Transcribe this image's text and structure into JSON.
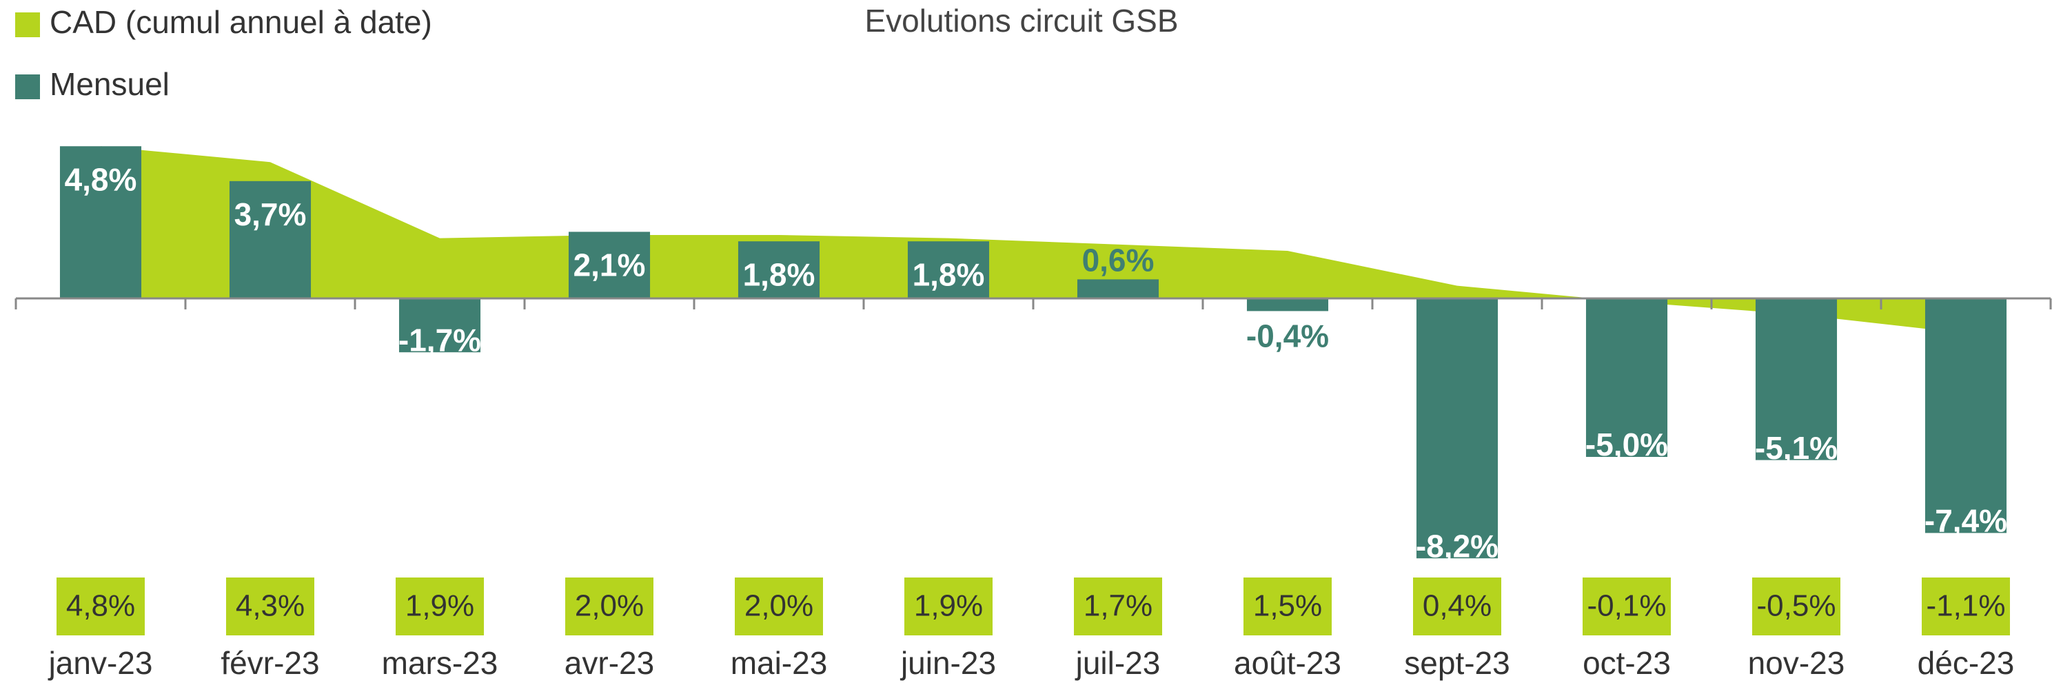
{
  "chart_data": {
    "type": "bar",
    "title": "Evolutions circuit GSB",
    "categories": [
      "janv-23",
      "févr-23",
      "mars-23",
      "avr-23",
      "mai-23",
      "juin-23",
      "juil-23",
      "août-23",
      "sept-23",
      "oct-23",
      "nov-23",
      "déc-23"
    ],
    "series": [
      {
        "name": "CAD  (cumul annuel à date)",
        "type": "area",
        "color": "#b5d41e",
        "values": [
          4.8,
          4.3,
          1.9,
          2.0,
          2.0,
          1.9,
          1.7,
          1.5,
          0.4,
          -0.1,
          -0.5,
          -1.1
        ],
        "value_labels": [
          "4,8%",
          "4,3%",
          "1,9%",
          "2,0%",
          "2,0%",
          "1,9%",
          "1,7%",
          "1,5%",
          "0,4%",
          "-0,1%",
          "-0,5%",
          "-1,1%"
        ]
      },
      {
        "name": "Mensuel",
        "type": "bar",
        "color": "#3f7f72",
        "values": [
          4.8,
          3.7,
          -1.7,
          2.1,
          1.8,
          1.8,
          0.6,
          -0.4,
          -8.2,
          -5.0,
          -5.1,
          -7.4
        ],
        "value_labels": [
          "4,8%",
          "3,7%",
          "-1,7%",
          "2,1%",
          "1,8%",
          "1,8%",
          "0,6%",
          "-0,4%",
          "-8,2%",
          "-5,0%",
          "-5,1%",
          "-7,4%"
        ]
      }
    ],
    "ylim": [
      -8.5,
      5
    ],
    "legend": "top-left"
  }
}
